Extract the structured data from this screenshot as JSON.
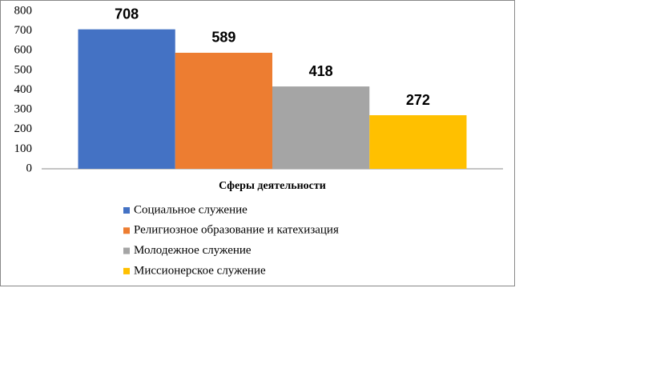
{
  "chart_data": {
    "type": "bar",
    "categories": [
      "Сферы деятельности"
    ],
    "series": [
      {
        "name": "Социальное служение",
        "color": "#4472c4",
        "values": [
          708
        ]
      },
      {
        "name": "Религиозное образование и катехизация",
        "color": "#ed7d31",
        "values": [
          589
        ]
      },
      {
        "name": "Молодежное служение",
        "color": "#a5a5a5",
        "values": [
          418
        ]
      },
      {
        "name": "Миссионерское служение",
        "color": "#ffc000",
        "values": [
          272
        ]
      }
    ],
    "ylim": [
      0,
      800
    ],
    "yticks": [
      0,
      100,
      200,
      300,
      400,
      500,
      600,
      700,
      800
    ],
    "grid": false,
    "legend": "bottom",
    "data_labels": true
  }
}
